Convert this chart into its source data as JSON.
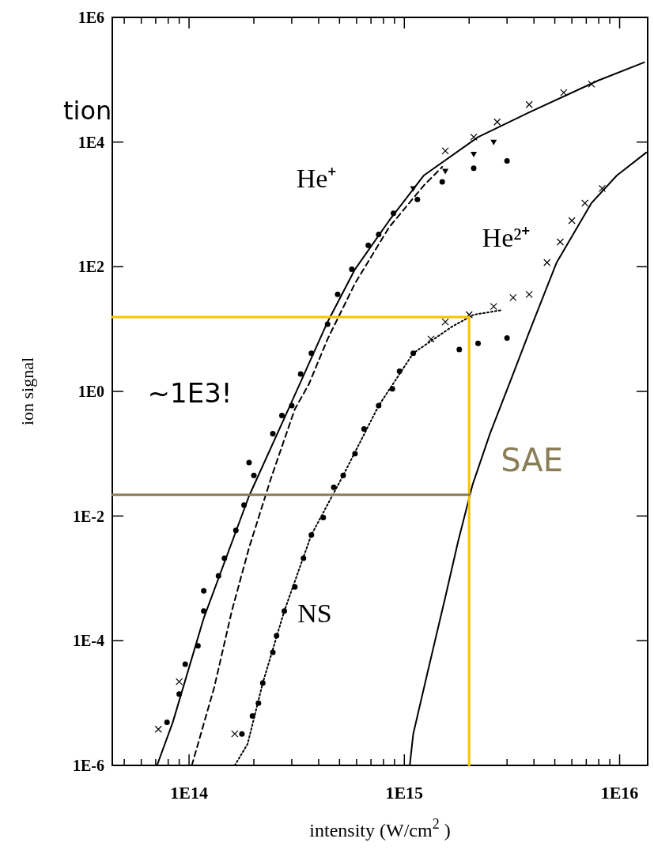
{
  "chart_data": {
    "type": "line",
    "xlabel": "intensity (W/cm$^{2}$ )",
    "ylabel": "ion signal",
    "log": "xy",
    "grid": false,
    "xlim": [
      44000000000000.0,
      1.35e+16
    ],
    "ylim": [
      1e-06,
      1000000.0
    ],
    "xticks": [
      {
        "value": 50000000000000.0,
        "label": null
      },
      {
        "value": 60000000000000.0,
        "label": null
      },
      {
        "value": 70000000000000.0,
        "label": null
      },
      {
        "value": 80000000000000.0,
        "label": null
      },
      {
        "value": 90000000000000.0,
        "label": null
      },
      {
        "value": 100000000000000.0,
        "label": "1E14"
      },
      {
        "value": 200000000000000.0,
        "label": null
      },
      {
        "value": 300000000000000.0,
        "label": null
      },
      {
        "value": 400000000000000.0,
        "label": null
      },
      {
        "value": 500000000000000.0,
        "label": null
      },
      {
        "value": 600000000000000.0,
        "label": null
      },
      {
        "value": 700000000000000.0,
        "label": null
      },
      {
        "value": 800000000000000.0,
        "label": null
      },
      {
        "value": 900000000000000.0,
        "label": null
      },
      {
        "value": 1000000000000000.0,
        "label": "1E15"
      },
      {
        "value": 2000000000000000.0,
        "label": null
      },
      {
        "value": 3000000000000000.0,
        "label": null
      },
      {
        "value": 4000000000000000.0,
        "label": null
      },
      {
        "value": 5000000000000000.0,
        "label": null
      },
      {
        "value": 6000000000000000.0,
        "label": null
      },
      {
        "value": 7000000000000000.0,
        "label": null
      },
      {
        "value": 8000000000000000.0,
        "label": null
      },
      {
        "value": 9000000000000000.0,
        "label": null
      },
      {
        "value": 1e+16,
        "label": "1E16"
      }
    ],
    "yticks": [
      {
        "value": 1e-06,
        "label": "1E-6"
      },
      {
        "value": 0.0001,
        "label": "1E-4"
      },
      {
        "value": 0.01,
        "label": "1E-2"
      },
      {
        "value": 1,
        "label": "1E0"
      },
      {
        "value": 100,
        "label": "1E2"
      },
      {
        "value": 10000.0,
        "label": "1E4"
      },
      {
        "value": 1000000.0,
        "label": "1E6"
      }
    ],
    "series": [
      {
        "color": "#000000",
        "line_style": "solid",
        "x": [
          71000000000000.0,
          84000000000000.0,
          117000000000000.0,
          190000000000000.0,
          300000000000000.0,
          440000000000000.0,
          590000000000000.0,
          850000000000000.0,
          1230000000000000.0,
          2200000000000000.0,
          3800000000000000.0,
          8000000000000000.0,
          1.3e+16
        ],
        "values": [
          1e-06,
          4.9e-06,
          0.00023,
          0.021,
          0.68,
          13,
          91,
          550,
          2900,
          12000,
          30000,
          98000,
          190000
        ]
      },
      {
        "color": "#000000",
        "line_style": "dashed",
        "x": [
          103000000000000.0,
          131000000000000.0,
          158000000000000.0,
          190000000000000.0,
          240000000000000.0,
          310000000000000.0,
          360000000000000.0,
          440000000000000.0,
          590000000000000.0,
          850000000000000.0,
          1230000000000000.0,
          1500000000000000.0
        ],
        "values": [
          1e-06,
          1.8e-05,
          0.0003,
          0.0031,
          0.04,
          0.52,
          1.3,
          6.9,
          54,
          430,
          2000,
          4000
        ]
      },
      {
        "color": "#000000",
        "line_style": "dotted",
        "x": [
          163000000000000.0,
          187000000000000.0,
          220000000000000.0,
          277000000000000.0,
          370000000000000.0,
          520000000000000.0,
          760000000000000.0,
          1100000000000000.0,
          1670000000000000.0,
          2100000000000000.0,
          2800000000000000.0
        ],
        "values": [
          1e-06,
          2.2e-06,
          2.1e-05,
          0.0003,
          0.005,
          0.045,
          0.59,
          4.1,
          11,
          17,
          20
        ]
      },
      {
        "color": "#000000",
        "line_style": "solid",
        "x": [
          1060000000000000.0,
          1100000000000000.0,
          1290000000000000.0,
          1550000000000000.0,
          1780000000000000.0,
          2070000000000000.0,
          2500000000000000.0,
          3200000000000000.0,
          3800000000000000.0,
          5100000000000000.0,
          7400000000000000.0,
          9700000000000000.0,
          1.33e+16
        ],
        "values": [
          1e-06,
          3.2e-06,
          3.4e-05,
          0.0005,
          0.004,
          0.031,
          0.21,
          1.9,
          8.9,
          117,
          1050,
          2900,
          6800
        ]
      },
      {
        "type": "scatter",
        "color": "#000000",
        "marker": "circle",
        "x": [
          79000000000000.0,
          90000000000000.0,
          96000000000000.0,
          110000000000000.0,
          117000000000000.0,
          117000000000000.0,
          137000000000000.0,
          146000000000000.0,
          165000000000000.0,
          180000000000000.0,
          190000000000000.0,
          200000000000000.0,
          245000000000000.0,
          270000000000000.0,
          300000000000000.0,
          330000000000000.0,
          370000000000000.0,
          440000000000000.0,
          490000000000000.0,
          570000000000000.0,
          680000000000000.0,
          760000000000000.0,
          890000000000000.0,
          1150000000000000.0,
          1500000000000000.0,
          2100000000000000.0,
          3000000000000000.0
        ],
        "values": [
          4.9e-06,
          1.4e-05,
          4.2e-05,
          8.3e-05,
          0.0003,
          0.00063,
          0.0011,
          0.0021,
          0.0059,
          0.015,
          0.072,
          0.045,
          0.21,
          0.41,
          0.59,
          1.9,
          4.1,
          12,
          36,
          91,
          220,
          330,
          720,
          1200,
          2300,
          3800,
          5000
        ]
      },
      {
        "type": "scatter",
        "color": "#000000",
        "marker": "triangle",
        "x": [
          1100000000000000.0,
          1550000000000000.0,
          2100000000000000.0,
          2600000000000000.0
        ],
        "values": [
          1800,
          3400,
          6400,
          10000
        ]
      },
      {
        "type": "scatter",
        "color": "#000000",
        "marker": "cross",
        "x": [
          72000000000000.0,
          90000000000000.0,
          1550000000000000.0,
          2100000000000000.0,
          2700000000000000.0,
          3800000000000000.0,
          5500000000000000.0,
          7400000000000000.0
        ],
        "values": [
          3.8e-06,
          2.2e-05,
          7200,
          12000,
          21000,
          40000,
          62000,
          85000
        ]
      },
      {
        "type": "scatter",
        "color": "#000000",
        "marker": "circle",
        "x": [
          176000000000000.0,
          197000000000000.0,
          210000000000000.0,
          220000000000000.0,
          245000000000000.0,
          255000000000000.0,
          277000000000000.0,
          310000000000000.0,
          340000000000000.0,
          370000000000000.0,
          420000000000000.0,
          470000000000000.0,
          520000000000000.0,
          590000000000000.0,
          650000000000000.0,
          760000000000000.0,
          880000000000000.0,
          950000000000000.0,
          1100000000000000.0,
          1800000000000000.0,
          2200000000000000.0,
          3000000000000000.0
        ],
        "values": [
          3.2e-06,
          6.2e-06,
          1e-05,
          2.1e-05,
          6.5e-05,
          0.00012,
          0.0003,
          0.00073,
          0.0021,
          0.005,
          0.0095,
          0.029,
          0.045,
          0.1,
          0.25,
          0.59,
          1.1,
          2.1,
          4.1,
          4.7,
          5.9,
          7.2
        ]
      },
      {
        "type": "scatter",
        "color": "#000000",
        "marker": "cross",
        "x": [
          163000000000000.0,
          1330000000000000.0,
          1550000000000000.0,
          2000000000000000.0,
          2600000000000000.0,
          3200000000000000.0,
          3800000000000000.0,
          4600000000000000.0,
          5300000000000000.0,
          6000000000000000.0,
          6900000000000000.0,
          8300000000000000.0
        ],
        "values": [
          3.2e-06,
          6.9,
          13,
          17,
          23,
          32,
          36,
          117,
          250,
          550,
          1050,
          1800
        ]
      },
      {
        "color": "#f5c400",
        "line_style": "solid",
        "x": [
          44000000000000.0,
          2000000000000000.0,
          2000000000000000.0
        ],
        "values": [
          15.6,
          15.6,
          1e-06
        ]
      },
      {
        "name": "SAE",
        "color": "#8b7d55",
        "line_style": "solid",
        "x": [
          44000000000000.0,
          2000000000000000.0
        ],
        "values": [
          0.022,
          0.022
        ]
      }
    ],
    "annotations": [
      "tion",
      "He⁺",
      "He²⁺",
      "NS",
      "~1E3!"
    ]
  }
}
